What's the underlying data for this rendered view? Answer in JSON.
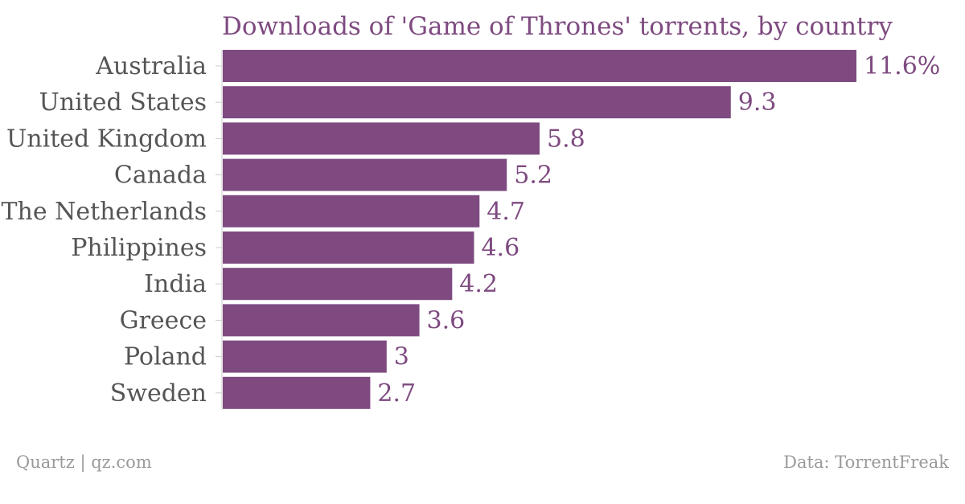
{
  "chart_data": {
    "type": "bar",
    "orientation": "horizontal",
    "title": "Downloads of 'Game of Thrones' torrents, by country",
    "categories": [
      "Australia",
      "United States",
      "United Kingdom",
      "Canada",
      "The Netherlands",
      "Philippines",
      "India",
      "Greece",
      "Poland",
      "Sweden"
    ],
    "values": [
      11.6,
      9.3,
      5.8,
      5.2,
      4.7,
      4.6,
      4.2,
      3.6,
      3,
      2.7
    ],
    "value_labels": [
      "11.6%",
      "9.3",
      "5.8",
      "5.2",
      "4.7",
      "4.6",
      "4.2",
      "3.6",
      "3",
      "2.7"
    ],
    "xlim": [
      0,
      11.6
    ],
    "grid": false,
    "bar_color": "#7e4a80"
  },
  "footer": {
    "left": "Quartz | qz.com",
    "right": "Data: TorrentFreak"
  }
}
